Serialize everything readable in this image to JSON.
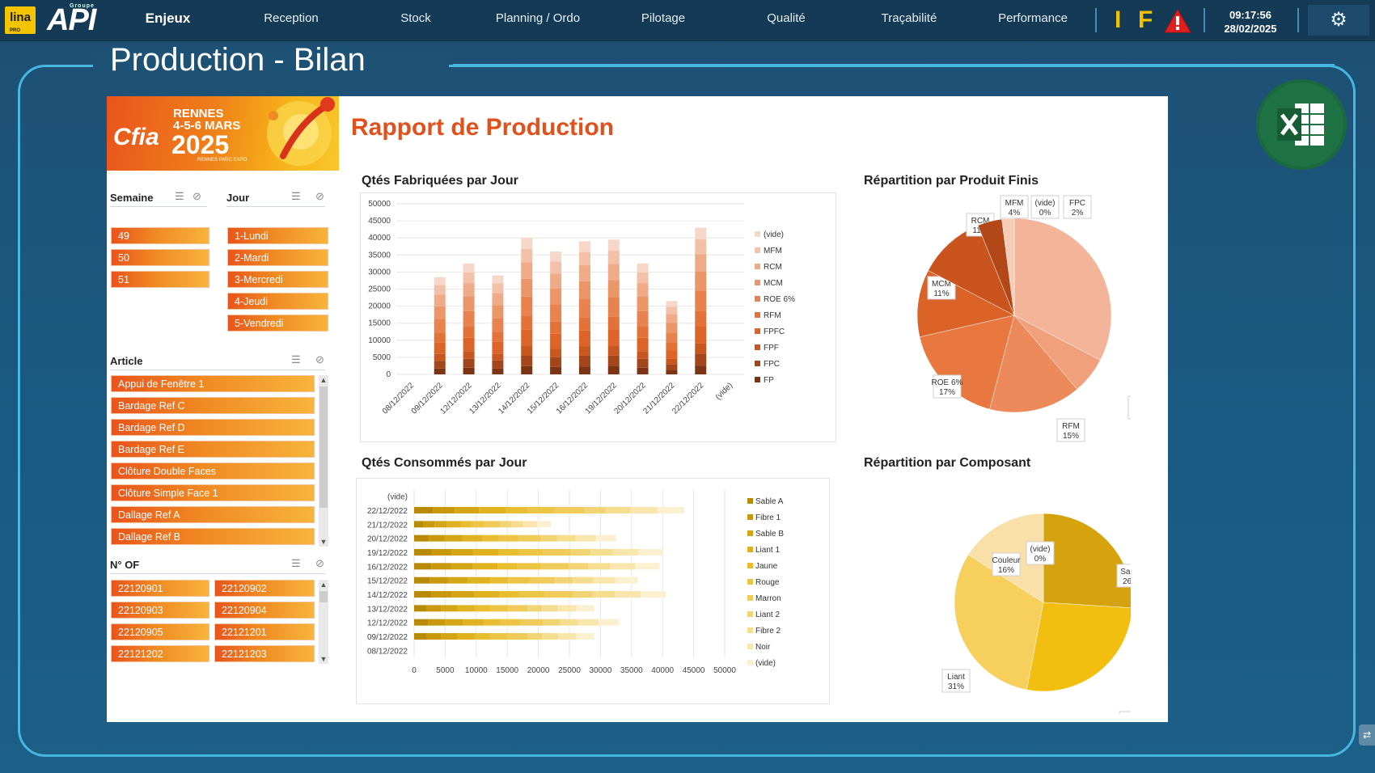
{
  "topbar": {
    "logo_lina": "lina",
    "logo_lina_sub": "PRO",
    "logo_api": "API",
    "logo_api_sub": "Groupe",
    "nav": [
      {
        "label": "Enjeux",
        "active": true
      },
      {
        "label": "Reception"
      },
      {
        "label": "Stock"
      },
      {
        "label": "Planning / Ordo"
      },
      {
        "label": "Pilotage"
      },
      {
        "label": "Qualité"
      },
      {
        "label": "Traçabilité"
      },
      {
        "label": "Performance"
      }
    ],
    "indicator_i": "I",
    "indicator_f": "F",
    "time": "09:17:56",
    "date": "28/02/2025",
    "colors": {
      "indicator": "#f3c000",
      "warning": "#e02020"
    }
  },
  "page": {
    "title": "Production - Bilan"
  },
  "report": {
    "title": "Rapport de Production",
    "banner": {
      "cfia": "Cfia",
      "city": "RENNES",
      "dates": "4-5-6 MARS",
      "year": "2025",
      "venue": "RENNES PARC EXPO"
    }
  },
  "slicers": {
    "semaine": {
      "title": "Semaine",
      "items": [
        "49",
        "50",
        "51"
      ]
    },
    "jour": {
      "title": "Jour",
      "items": [
        "1-Lundi",
        "2-Mardi",
        "3-Mercredi",
        "4-Jeudi",
        "5-Vendredi"
      ]
    },
    "article": {
      "title": "Article",
      "items": [
        "Appui de Fenêtre 1",
        "Bardage Ref C",
        "Bardage Ref D",
        "Bardage Ref E",
        "Clôture Double Faces",
        "Clôture Simple Face 1",
        "Dallage Ref A",
        "Dallage Ref B"
      ]
    },
    "nof": {
      "title": "N° OF",
      "items": [
        "22120901",
        "22120902",
        "22120903",
        "22120904",
        "22120905",
        "22121201",
        "22121202",
        "22121203"
      ]
    }
  },
  "chart_data": [
    {
      "id": "qtes-fabriquees",
      "type": "bar",
      "stacked": true,
      "title": "Qtés Fabriquées par Jour",
      "categories": [
        "08/12/2022",
        "09/12/2022",
        "12/12/2022",
        "13/12/2022",
        "14/12/2022",
        "15/12/2022",
        "16/12/2022",
        "19/12/2022",
        "20/12/2022",
        "21/12/2022",
        "22/12/2022",
        "(vide)"
      ],
      "totals": [
        0,
        28500,
        32500,
        29000,
        40000,
        36000,
        39000,
        39500,
        32500,
        21500,
        43000,
        0
      ],
      "yticks": [
        0,
        5000,
        10000,
        15000,
        20000,
        25000,
        30000,
        35000,
        40000,
        45000,
        50000
      ],
      "ylim": [
        0,
        50000
      ],
      "legend": [
        "(vide)",
        "MFM",
        "RCM",
        "MCM",
        "ROE 6%",
        "RFM",
        "FPFC",
        "FPF",
        "FPC",
        "FP"
      ],
      "series_colors": [
        "#f6d7c9",
        "#f3c0a8",
        "#efaa88",
        "#eb9668",
        "#e8834f",
        "#e37238",
        "#dd6428",
        "#c8561f",
        "#a4461b",
        "#7d3414"
      ]
    },
    {
      "id": "repartition-produits",
      "type": "pie",
      "title": "Répartition par Produit Finis",
      "labels": [
        "FPF",
        "FPFC",
        "RFM",
        "ROE 6%",
        "MCM",
        "RCM",
        "MFM",
        "(vide)",
        "FPC"
      ],
      "values": [
        32,
        6,
        15,
        17,
        11,
        11,
        4,
        0,
        2
      ],
      "colors": [
        "#f4b49a",
        "#f1a07c",
        "#ed8a5c",
        "#e97740",
        "#dc6328",
        "#c9541d",
        "#b24718",
        "#fbe3d7",
        "#f6cbb8"
      ]
    },
    {
      "id": "qtes-consommees",
      "type": "bar",
      "orientation": "horizontal",
      "stacked": true,
      "title": "Qtés Consommés par Jour",
      "categories": [
        "(vide)",
        "22/12/2022",
        "21/12/2022",
        "20/12/2022",
        "19/12/2022",
        "16/12/2022",
        "15/12/2022",
        "14/12/2022",
        "13/12/2022",
        "12/12/2022",
        "09/12/2022",
        "08/12/2022"
      ],
      "totals": [
        0,
        43500,
        22000,
        32500,
        40000,
        39500,
        36000,
        40500,
        29000,
        33000,
        29000,
        0
      ],
      "xticks": [
        0,
        5000,
        10000,
        15000,
        20000,
        25000,
        30000,
        35000,
        40000,
        45000,
        50000
      ],
      "xlim": [
        0,
        50000
      ],
      "legend": [
        "Sable A",
        "Fibre 1",
        "Sable B",
        "Liant 1",
        "Jaune",
        "Rouge",
        "Marron",
        "Liant 2",
        "Fibre 2",
        "Noir",
        "(vide)"
      ],
      "series_colors": [
        "#b98a08",
        "#c9980c",
        "#d4a514",
        "#e0b220",
        "#e8bd30",
        "#edc444",
        "#f0cb5a",
        "#f3d474",
        "#f6de90",
        "#f8e6ac",
        "#fbf0cf"
      ]
    },
    {
      "id": "repartition-composant",
      "type": "pie",
      "title": "Répartition par Composant",
      "labels": [
        "Sable",
        "Fibre",
        "Liant",
        "Couleur",
        "(vide)"
      ],
      "values": [
        26,
        27,
        31,
        16,
        0
      ],
      "colors": [
        "#d6a20e",
        "#f2bf10",
        "#f7cf5c",
        "#f9e0a8",
        "#fdf2d8"
      ]
    }
  ]
}
